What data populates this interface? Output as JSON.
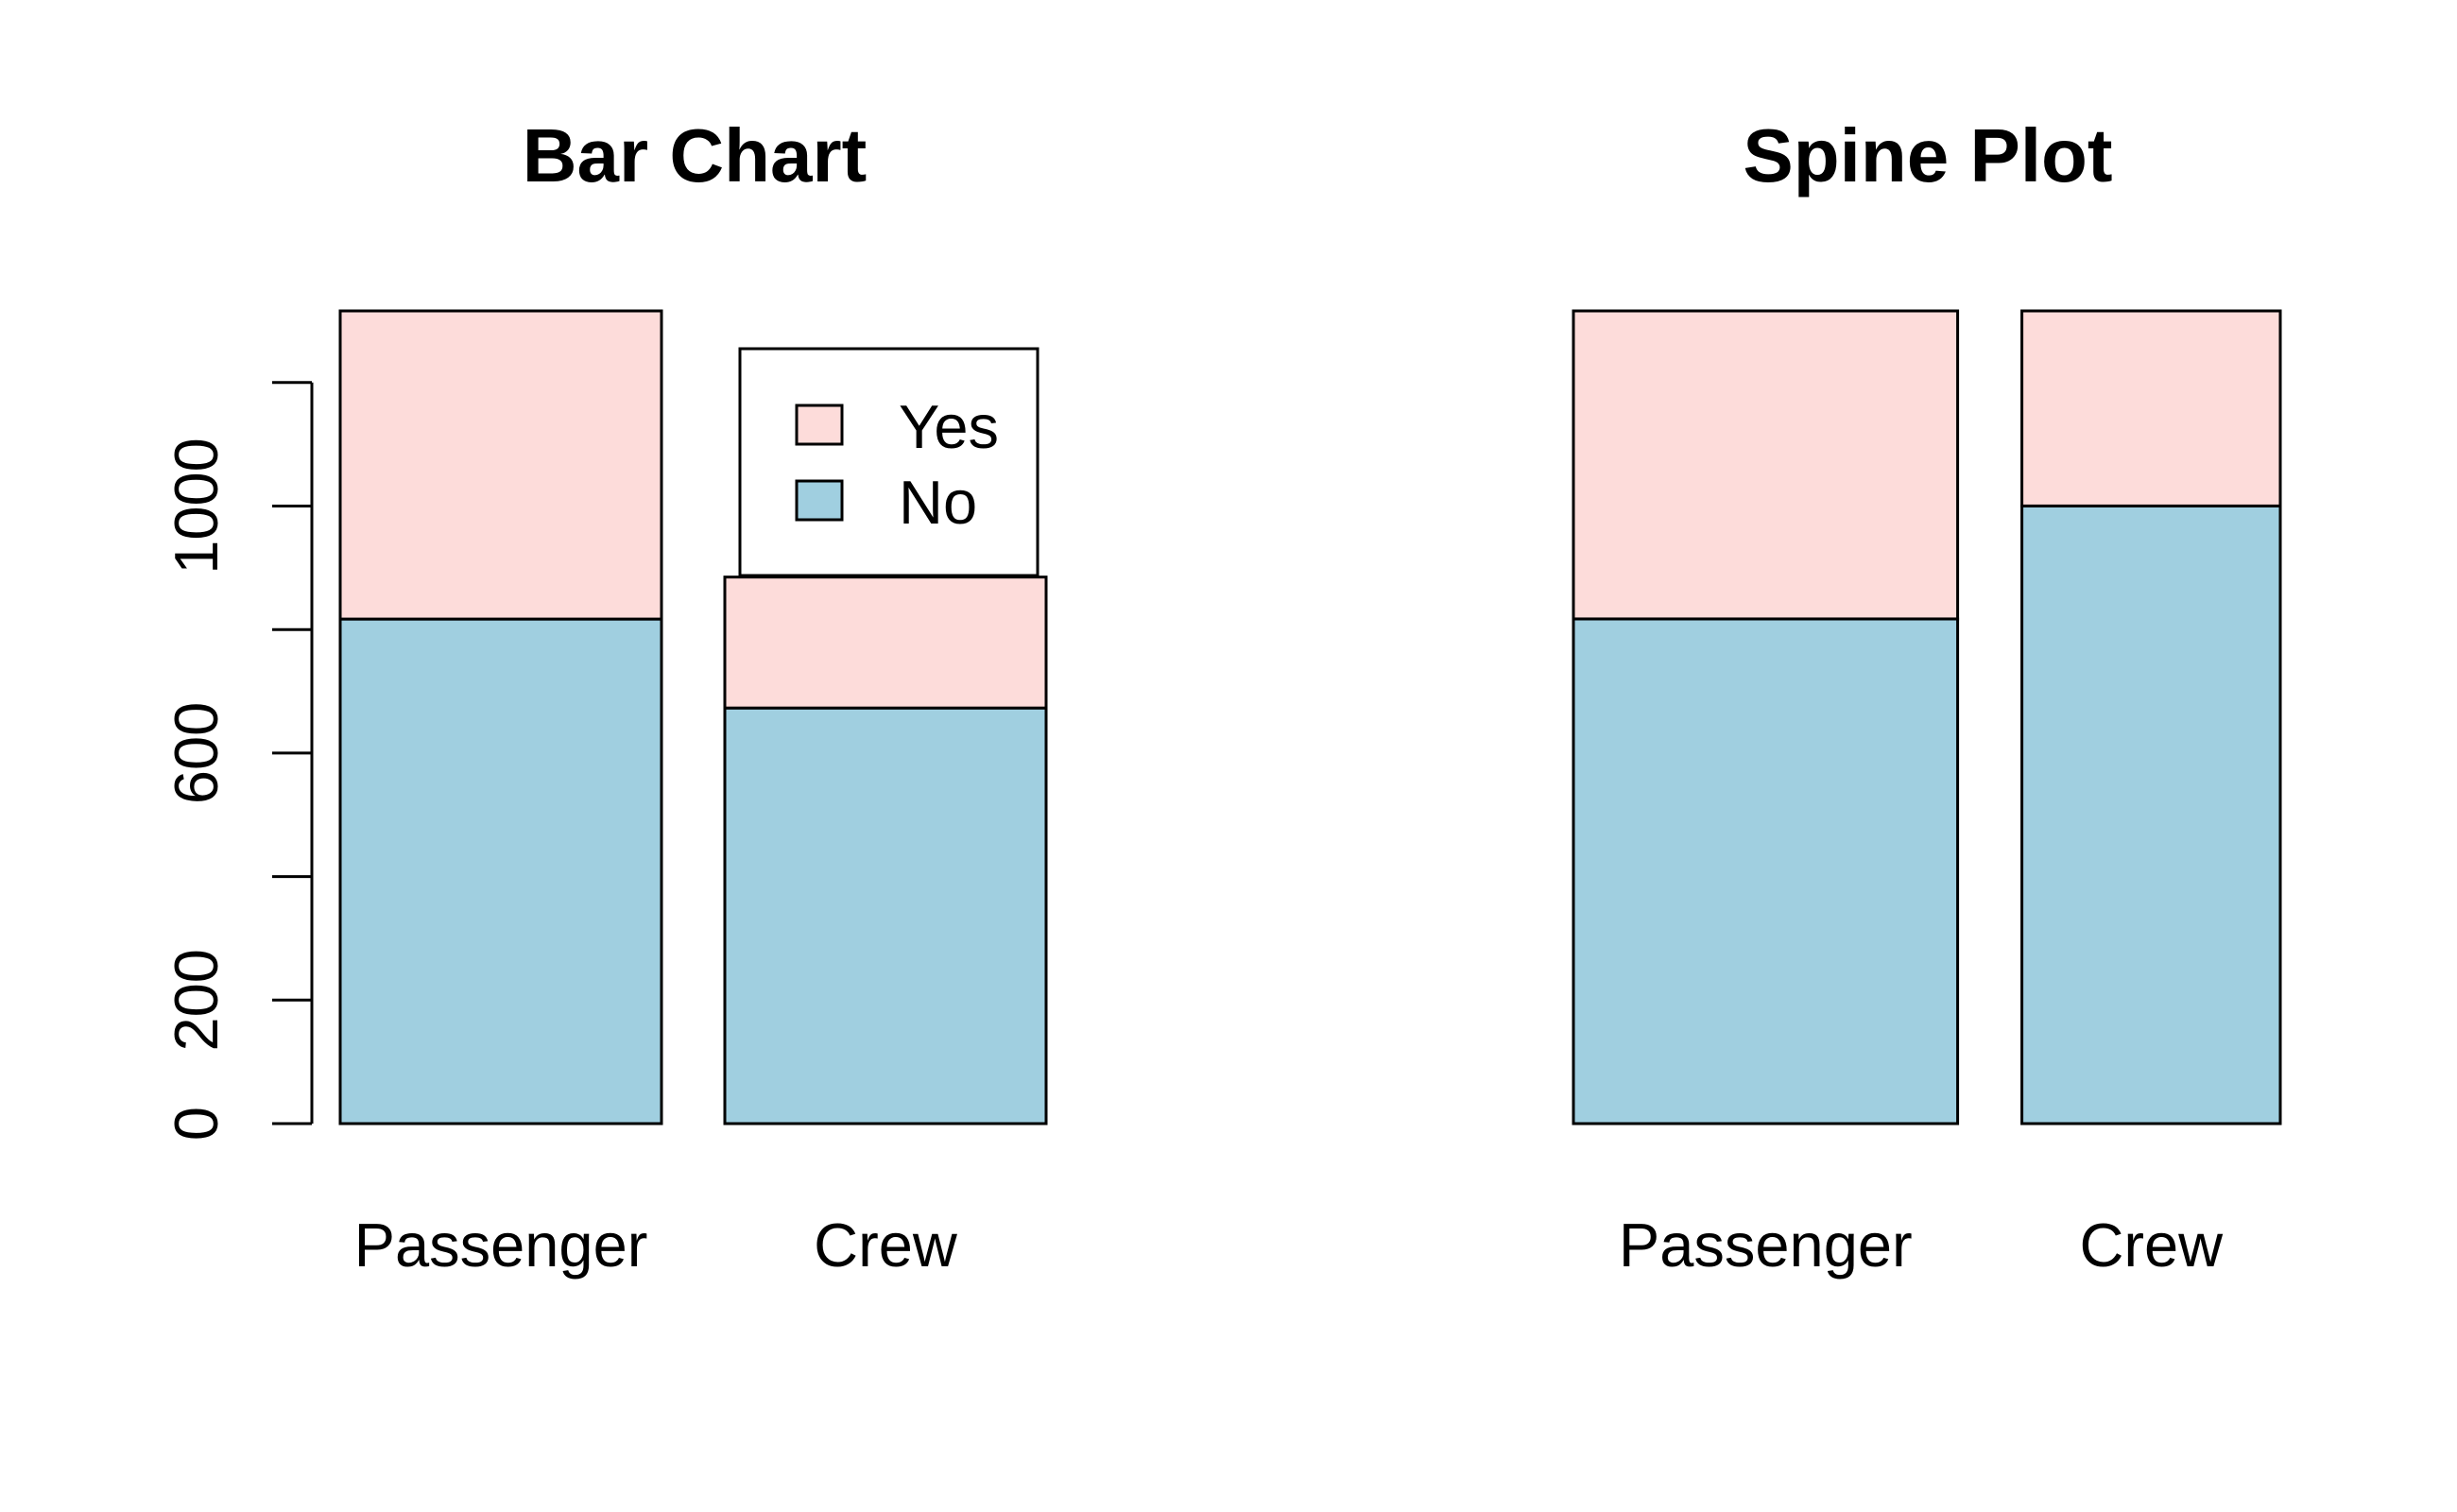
{
  "colors": {
    "no": "#A0CFE0",
    "yes": "#FDDCDA",
    "stroke": "#000000",
    "background": "#ffffff"
  },
  "legend": {
    "placement": "top-right of bar chart",
    "items": [
      {
        "label": "Yes",
        "color": "#FDDCDA"
      },
      {
        "label": "No",
        "color": "#A0CFE0"
      }
    ]
  },
  "chart_data": [
    {
      "type": "bar",
      "stacked": true,
      "title": "Bar Chart",
      "xlabel": "",
      "ylabel": "",
      "categories": [
        "Passenger",
        "Crew"
      ],
      "series": [
        {
          "name": "No",
          "values": [
            817,
            673
          ]
        },
        {
          "name": "Yes",
          "values": [
            499,
            212
          ]
        }
      ],
      "ylim": [
        0,
        1316
      ],
      "yticks": [
        0,
        200,
        400,
        600,
        800,
        1000,
        1200
      ],
      "ytick_labels": [
        "0",
        "200",
        "",
        "600",
        "",
        "1000",
        ""
      ],
      "grid": false,
      "legend": "top-right"
    },
    {
      "type": "bar",
      "stacked": true,
      "normalized": true,
      "title": "Spine Plot",
      "xlabel": "",
      "ylabel": "",
      "categories": [
        "Passenger",
        "Crew"
      ],
      "widths": [
        1316,
        885
      ],
      "series": [
        {
          "name": "No",
          "values": [
            0.621,
            0.76
          ]
        },
        {
          "name": "Yes",
          "values": [
            0.379,
            0.24
          ]
        }
      ],
      "ylim": [
        0,
        1
      ],
      "grid": false
    }
  ]
}
